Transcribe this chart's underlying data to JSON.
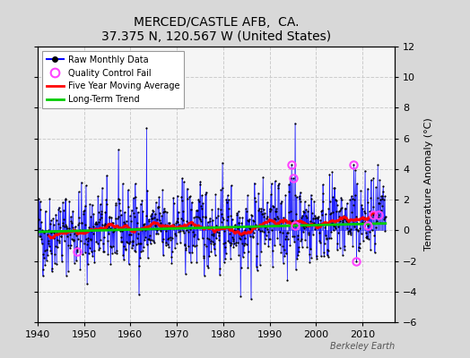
{
  "title": "MERCED/CASTLE AFB,  CA.",
  "subtitle": "37.375 N, 120.567 W (United States)",
  "ylabel": "Temperature Anomaly (°C)",
  "watermark": "Berkeley Earth",
  "xlim": [
    1940,
    2017
  ],
  "ylim": [
    -6,
    12
  ],
  "yticks": [
    -6,
    -4,
    -2,
    0,
    2,
    4,
    6,
    8,
    10,
    12
  ],
  "xticks": [
    1940,
    1950,
    1960,
    1970,
    1980,
    1990,
    2000,
    2010
  ],
  "plot_bg": "#f5f5f5",
  "outer_bg": "#d8d8d8",
  "raw_color": "#0000ff",
  "dot_color": "#000000",
  "ma_color": "#ff0000",
  "trend_color": "#00cc00",
  "qc_color": "#ff44ff",
  "seed": 42
}
